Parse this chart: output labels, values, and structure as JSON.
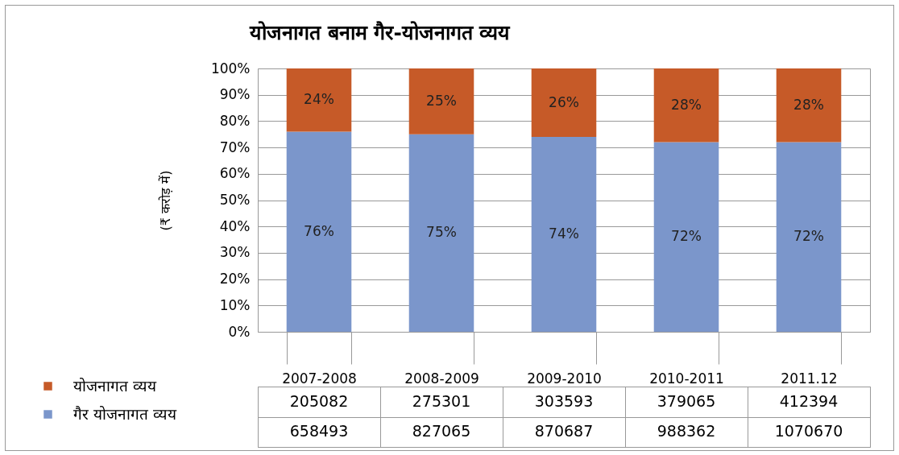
{
  "chart_data": {
    "type": "bar",
    "stacked": true,
    "title": "योजनागत बनाम गैर-योजनागत व्यय",
    "ylabel": "(₹ करोड़ में)",
    "categories": [
      "2007-2008",
      "2008-2009",
      "2009-2010",
      "2010-2011",
      "2011.12"
    ],
    "series": [
      {
        "name": "गैर योजनागत व्यय",
        "color": "#7b96cb",
        "values": [
          76,
          75,
          74,
          72,
          72
        ],
        "value_labels": [
          "76%",
          "75%",
          "74%",
          "72%",
          "72%"
        ]
      },
      {
        "name": "योजनागत व्यय",
        "color": "#c65a28",
        "values": [
          24,
          25,
          26,
          28,
          28
        ],
        "value_labels": [
          "24%",
          "25%",
          "26%",
          "28%",
          "28%"
        ]
      }
    ],
    "ylim": [
      0,
      100
    ],
    "yticks": [
      {
        "value": 0,
        "label": "0%"
      },
      {
        "value": 10,
        "label": "10%"
      },
      {
        "value": 20,
        "label": "20%"
      },
      {
        "value": 30,
        "label": "30%"
      },
      {
        "value": 40,
        "label": "40%"
      },
      {
        "value": 50,
        "label": "50%"
      },
      {
        "value": 60,
        "label": "60%"
      },
      {
        "value": 70,
        "label": "70%"
      },
      {
        "value": 80,
        "label": "80%"
      },
      {
        "value": 90,
        "label": "90%"
      },
      {
        "value": 100,
        "label": "100%"
      }
    ],
    "grid": "y",
    "legend": "bottom left",
    "annotations": [
      "205082",
      "275301",
      "303593",
      "379065",
      "412394",
      "658493",
      "827065",
      "870687",
      "988362",
      "1070670"
    ]
  }
}
